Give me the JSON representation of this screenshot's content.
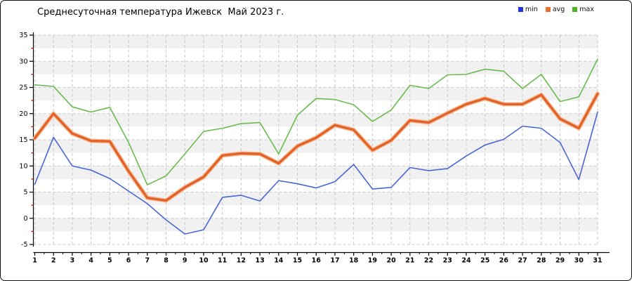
{
  "title": "Среднесуточная температура Ижевск  Май 2023 г.",
  "legend": {
    "items": [
      {
        "label": "min",
        "color": "#2436d8"
      },
      {
        "label": "avg",
        "color": "#e8702a"
      },
      {
        "label": "max",
        "color": "#4fb22c"
      }
    ]
  },
  "colors": {
    "band_fill": "#f1f1f1",
    "grid": "#c9c9c9",
    "axis": "#000000",
    "minor_tick": "#cc0000",
    "text": "#000000"
  },
  "chart_data": {
    "type": "line",
    "title": "Среднесуточная температура Ижевск  Май 2023 г.",
    "xlabel": "",
    "ylabel": "",
    "x": [
      1,
      2,
      3,
      4,
      5,
      6,
      7,
      8,
      9,
      10,
      11,
      12,
      13,
      14,
      15,
      16,
      17,
      18,
      19,
      20,
      21,
      22,
      23,
      24,
      25,
      26,
      27,
      28,
      29,
      30,
      31
    ],
    "xlim": [
      1,
      31
    ],
    "ylim": [
      -5,
      35
    ],
    "yticks_major": [
      35,
      30,
      25,
      20,
      15,
      10,
      5,
      0,
      -5
    ],
    "yticks_minor": [
      32.5,
      27.5,
      22.5,
      17.5,
      12.5,
      7.5,
      2.5,
      -2.5
    ],
    "grid": "dashed",
    "alternating_bands": true,
    "legend_position": "top-right",
    "series": [
      {
        "name": "min",
        "color": "#4a66d6",
        "halo": null,
        "width": 1.6,
        "values": [
          6.5,
          15.5,
          10.0,
          9.2,
          7.6,
          5.2,
          2.8,
          -0.3,
          -3.0,
          -2.2,
          4.0,
          4.4,
          3.3,
          7.2,
          6.6,
          5.8,
          7.0,
          10.3,
          5.6,
          5.9,
          9.7,
          9.1,
          9.5,
          11.9,
          14.0,
          15.1,
          17.6,
          17.2,
          14.5,
          7.4,
          20.3
        ]
      },
      {
        "name": "avg",
        "color": "#e2622b",
        "halo": "#f6bd93",
        "width": 3.4,
        "values": [
          15.3,
          20.0,
          16.2,
          14.8,
          14.7,
          9.0,
          3.9,
          3.4,
          5.9,
          7.9,
          12.0,
          12.4,
          12.3,
          10.5,
          13.8,
          15.4,
          17.8,
          16.9,
          13.0,
          14.9,
          18.7,
          18.3,
          20.1,
          21.8,
          22.9,
          21.8,
          21.8,
          23.6,
          19.0,
          17.2,
          23.8
        ]
      },
      {
        "name": "max",
        "color": "#6abb4e",
        "halo": null,
        "width": 1.6,
        "values": [
          25.5,
          25.2,
          21.3,
          20.3,
          21.2,
          14.5,
          6.4,
          8.1,
          12.3,
          16.6,
          17.2,
          18.1,
          18.3,
          12.3,
          19.7,
          22.9,
          22.7,
          21.7,
          18.5,
          20.7,
          25.4,
          24.8,
          27.4,
          27.5,
          28.5,
          28.1,
          24.8,
          27.5,
          22.3,
          23.2,
          30.4
        ]
      }
    ]
  }
}
